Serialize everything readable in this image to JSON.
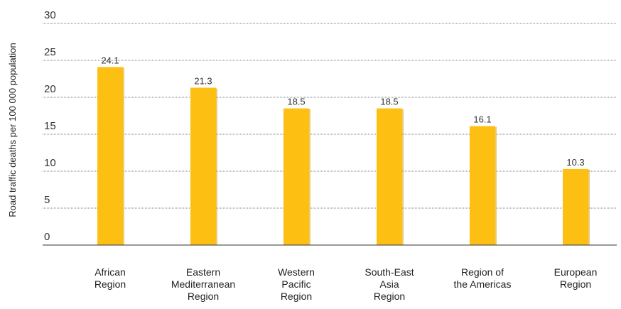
{
  "chart_data": {
    "type": "bar",
    "ylabel": "Road traffic deaths per 100 000 population",
    "xlabel": "",
    "ylim": [
      0,
      30
    ],
    "yticks": [
      0,
      5,
      10,
      15,
      20,
      25,
      30
    ],
    "grid": true,
    "categories": [
      [
        "African",
        "Region"
      ],
      [
        "Eastern",
        "Mediterranean",
        "Region"
      ],
      [
        "Western",
        "Pacific",
        "Region"
      ],
      [
        "South-East",
        "Asia",
        "Region"
      ],
      [
        "Region of",
        "the Americas"
      ],
      [
        "European",
        "Region"
      ]
    ],
    "values": [
      24.1,
      21.3,
      18.5,
      18.5,
      16.1,
      10.3
    ],
    "value_labels": [
      "24.1",
      "21.3",
      "18.5",
      "18.5",
      "16.1",
      "10.3"
    ],
    "bar_color": "#FDBF12",
    "shadow_color": "#D9A00C"
  }
}
